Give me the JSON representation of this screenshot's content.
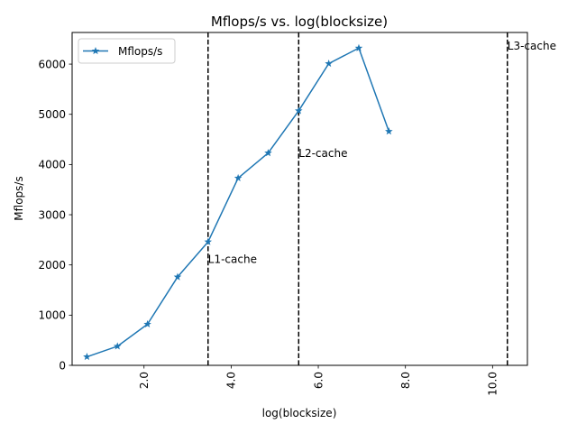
{
  "chart_data": {
    "type": "line",
    "title": "Mflops/s vs. log(blocksize)",
    "xlabel": "log(blocksize)",
    "ylabel": "Mflops/s",
    "xlim": [
      0.35,
      10.8
    ],
    "ylim": [
      0,
      6630
    ],
    "xticks": [
      2.0,
      4.0,
      6.0,
      8.0,
      10.0
    ],
    "xtick_labels": [
      "2.0",
      "4.0",
      "6.0",
      "8.0",
      "10.0"
    ],
    "xtick_rotation": 90,
    "yticks": [
      0,
      1000,
      2000,
      3000,
      4000,
      5000,
      6000
    ],
    "ytick_labels": [
      "0",
      "1000",
      "2000",
      "3000",
      "4000",
      "5000",
      "6000"
    ],
    "grid": false,
    "legend": {
      "position": "upper-left",
      "entries": [
        "Mflops/s"
      ]
    },
    "series": [
      {
        "name": "Mflops/s",
        "color": "#1f77b4",
        "marker": "star",
        "x": [
          0.69,
          1.39,
          2.08,
          2.77,
          3.47,
          4.16,
          4.85,
          5.55,
          6.24,
          6.93,
          7.62
        ],
        "y": [
          170,
          380,
          820,
          1760,
          2460,
          3730,
          4230,
          5070,
          6010,
          6320,
          4660
        ]
      }
    ],
    "vlines": [
      {
        "x": 3.47,
        "label": "L1-cache",
        "label_y": 2120
      },
      {
        "x": 5.55,
        "label": "L2-cache",
        "label_y": 4230
      },
      {
        "x": 10.34,
        "label": "L3-cache",
        "label_y": 6370
      }
    ]
  }
}
